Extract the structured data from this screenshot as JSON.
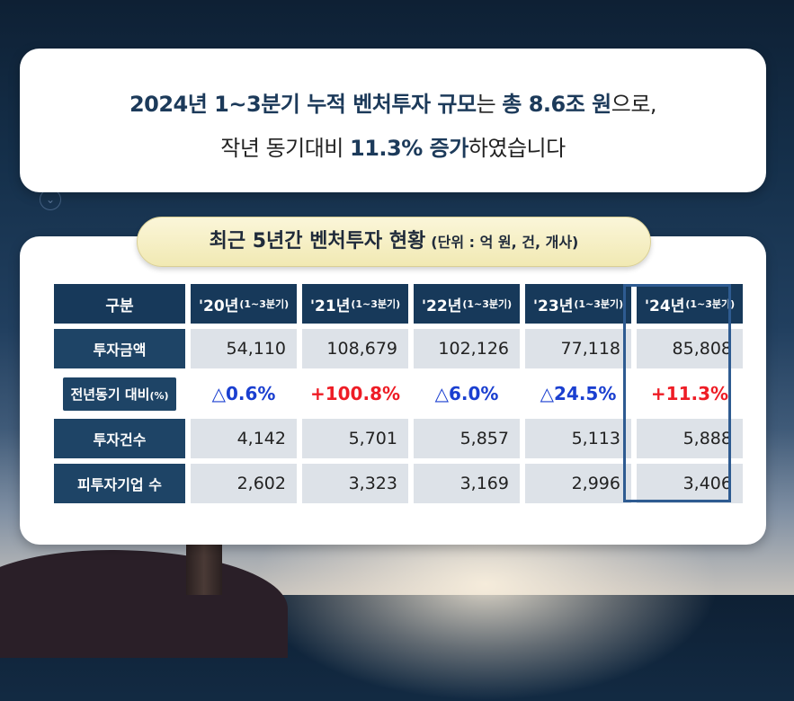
{
  "headline": {
    "l1_a": "2024년 1~3분기 누적 벤처투자 규모",
    "l1_b": "는 ",
    "l1_c": "총 8.6조 원",
    "l1_d": "으로,",
    "l2_a": "작년 동기대비 ",
    "l2_b": "11.3% 증가",
    "l2_c": "하였습니다"
  },
  "table_title": "최근 5년간 벤처투자 현황",
  "table_unit": "(단위 : 억 원, 건, 개사)",
  "table": {
    "corner": "구분",
    "years": [
      {
        "y": "'20년",
        "q": "(1~3분기)"
      },
      {
        "y": "'21년",
        "q": "(1~3분기)"
      },
      {
        "y": "'22년",
        "q": "(1~3분기)"
      },
      {
        "y": "'23년",
        "q": "(1~3분기)"
      },
      {
        "y": "'24년",
        "q": "(1~3분기)"
      }
    ],
    "rows": {
      "amount": {
        "label": "투자금액",
        "values": [
          "54,110",
          "108,679",
          "102,126",
          "77,118",
          "85,808"
        ]
      },
      "yoy": {
        "label": "전년동기 대비",
        "unit": "(%)",
        "values": [
          "△0.6%",
          "+100.8%",
          "△6.0%",
          "△24.5%",
          "+11.3%"
        ]
      },
      "count": {
        "label": "투자건수",
        "values": [
          "4,142",
          "5,701",
          "5,857",
          "5,113",
          "5,888"
        ]
      },
      "companies": {
        "label": "피투자기업 수",
        "values": [
          "2,602",
          "3,323",
          "3,169",
          "2,996",
          "3,406"
        ]
      }
    }
  },
  "colors": {
    "header_bg": "#17395a",
    "increase": "#ee1c25",
    "decrease": "#1a3fd0",
    "highlight_border": "#2e5b91"
  }
}
